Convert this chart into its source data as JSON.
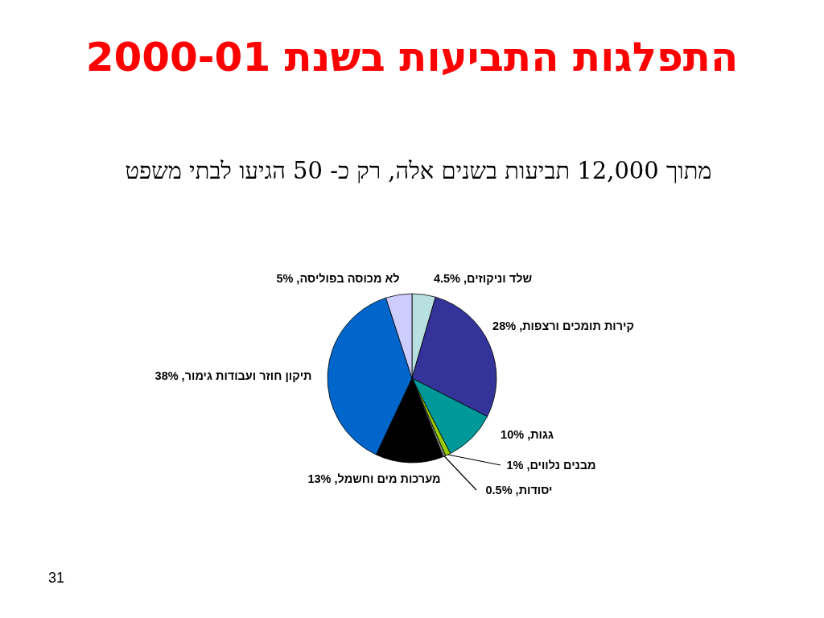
{
  "chart_data": {
    "type": "pie",
    "title": "התפלגות התביעות בשנת 2000-01",
    "subtitle": "מתוך 12,000 תביעות בשנים אלה, רק כ- 50 הגיעו לבתי משפט",
    "categories": [
      "שלד וניקוזים",
      "קירות תומכים ורצפות",
      "גגות",
      "מבנים נלווים",
      "יסודות",
      "מערכות מים וחשמל",
      "תיקון חוזר ועבודות גימור",
      "לא מכוסה בפוליסה"
    ],
    "values": [
      4.5,
      28,
      10,
      1,
      0.5,
      13,
      38,
      5
    ],
    "value_labels": [
      "4.5%",
      "28%",
      "10%",
      "1%",
      "0.5%",
      "13%",
      "38%",
      "5%"
    ],
    "colors": [
      "#b8e0e0",
      "#333399",
      "#009999",
      "#99cc00",
      "#808080",
      "#000000",
      "#0066cc",
      "#ccccff"
    ],
    "legend": false,
    "annotations": [
      "31"
    ]
  }
}
